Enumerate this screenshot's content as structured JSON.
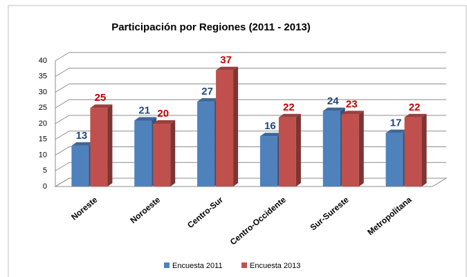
{
  "chart_data": {
    "type": "bar3d",
    "title": "Participación por Regiones (2011 - 2013)",
    "categories": [
      "Noreste",
      "Noroeste",
      "Centro-Sur",
      "Centro-Occidente",
      "Sur-Sureste",
      "Metropolitana"
    ],
    "series": [
      {
        "name": "Encuesta 2011",
        "color": "#4f81bd",
        "label_color": "#1f497d",
        "values": [
          13,
          21,
          27,
          16,
          24,
          17
        ]
      },
      {
        "name": "Encuesta 2013",
        "color": "#c0504d",
        "label_color": "#c00000",
        "values": [
          25,
          20,
          37,
          22,
          23,
          22
        ]
      }
    ],
    "ylim": [
      0,
      40
    ],
    "yticks": [
      0,
      5,
      10,
      15,
      20,
      25,
      30,
      35,
      40
    ],
    "grid": true,
    "legend": "bottom"
  }
}
